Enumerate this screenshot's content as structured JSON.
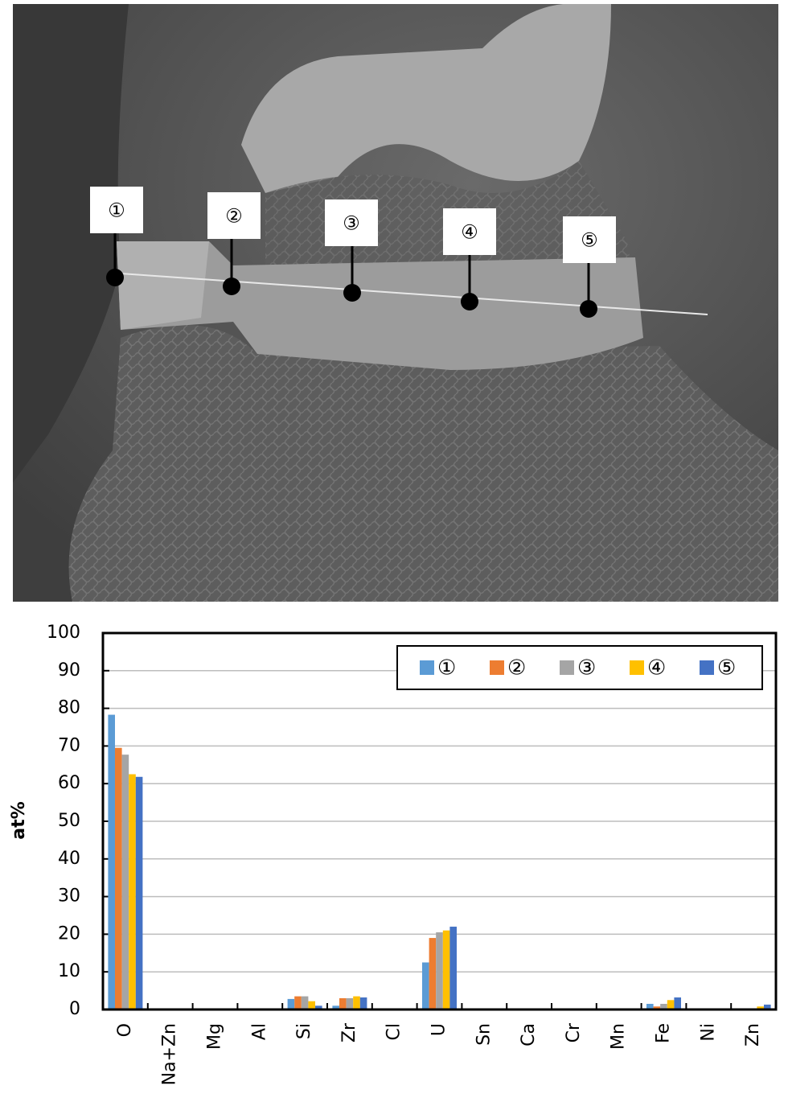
{
  "chart_data": {
    "type": "bar",
    "y_label": "at%",
    "categories": [
      "O",
      "Na+Zn",
      "Mg",
      "Al",
      "Si",
      "Zr",
      "Cl",
      "U",
      "Sn",
      "Ca",
      "Cr",
      "Mn",
      "Fe",
      "Ni",
      "Zn"
    ],
    "series": [
      {
        "name": "①",
        "color": "#5b9bd5",
        "values": [
          78.3,
          0,
          0,
          0,
          2.8,
          1.0,
          0,
          12.5,
          0,
          0,
          0,
          0,
          1.5,
          0,
          0
        ]
      },
      {
        "name": "②",
        "color": "#ed7d31",
        "values": [
          69.5,
          0,
          0,
          0,
          3.5,
          3.0,
          0,
          19.0,
          0,
          0,
          0,
          0,
          0.8,
          0,
          0
        ]
      },
      {
        "name": "③",
        "color": "#a5a5a5",
        "values": [
          67.7,
          0,
          0,
          0,
          3.5,
          3.0,
          0,
          20.5,
          0,
          0,
          0,
          0,
          1.5,
          0,
          0
        ]
      },
      {
        "name": "④",
        "color": "#ffc000",
        "values": [
          62.5,
          0,
          0,
          0,
          2.2,
          3.5,
          0,
          21.0,
          0,
          0,
          0,
          0,
          2.5,
          0,
          0.8
        ]
      },
      {
        "name": "⑤",
        "color": "#4472c4",
        "values": [
          61.8,
          0,
          0,
          0,
          1.0,
          3.2,
          0,
          22.0,
          0,
          0,
          0,
          0,
          3.2,
          0,
          1.3
        ]
      }
    ],
    "ylim": [
      0,
      100
    ],
    "yticks": [
      0,
      10,
      20,
      30,
      40,
      50,
      60,
      70,
      80,
      90,
      100
    ],
    "grid": true,
    "legend": "top-right"
  }
}
